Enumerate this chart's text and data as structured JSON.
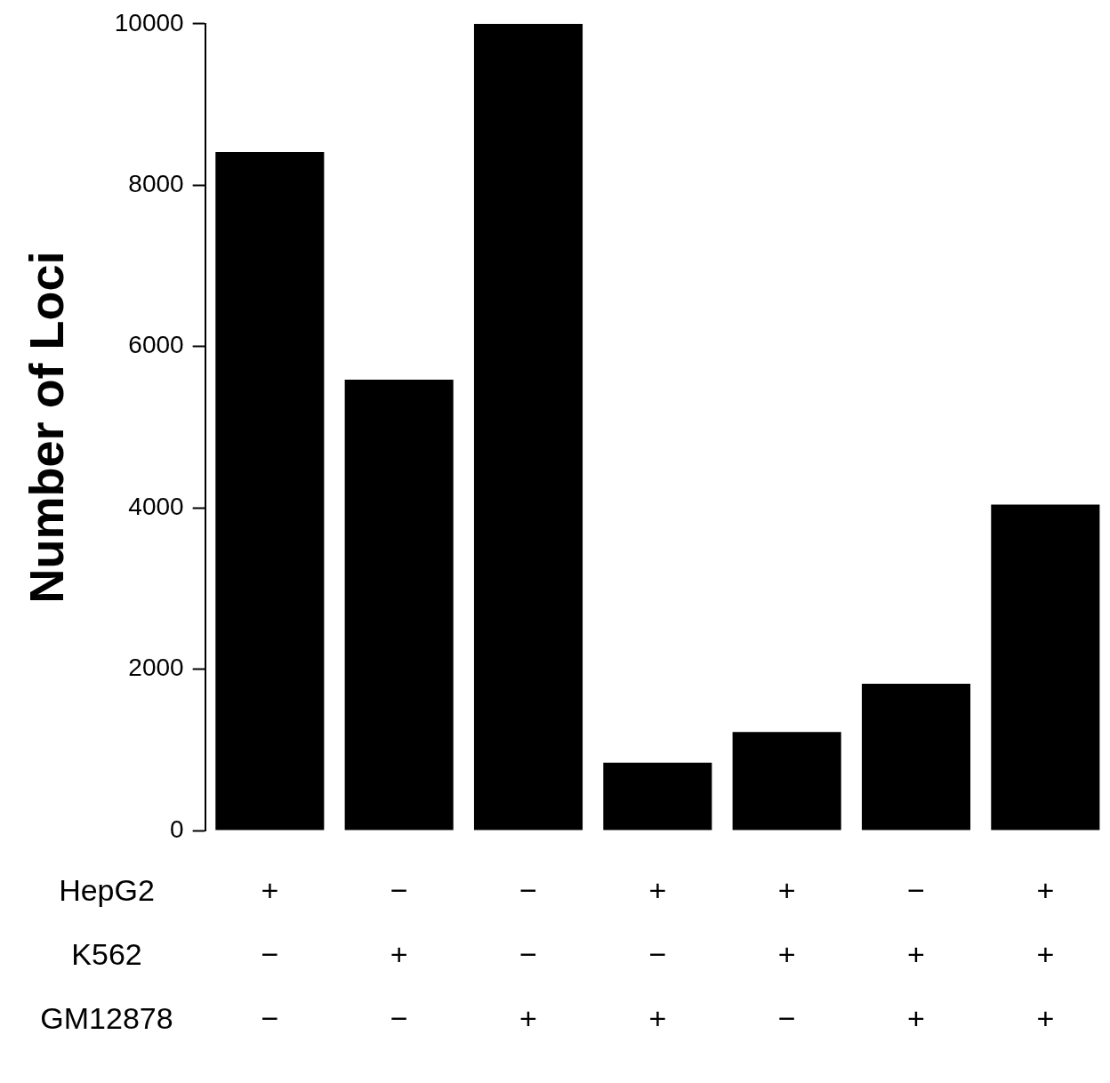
{
  "chart_data": {
    "type": "bar",
    "ylabel": "Number of Loci",
    "categories": [
      "+ − −",
      "− + −",
      "− − +",
      "+ − +",
      "+ + −",
      "− + +",
      "+ + +"
    ],
    "values": [
      8410,
      5590,
      10000,
      840,
      1220,
      1820,
      4040
    ],
    "color": "#000000",
    "ylim": [
      0,
      10000
    ],
    "yticks": [
      0,
      2000,
      4000,
      6000,
      8000,
      10000
    ],
    "grid": false,
    "legend": false,
    "annotations": [
      "HepG2",
      "K562",
      "GM12878"
    ]
  }
}
